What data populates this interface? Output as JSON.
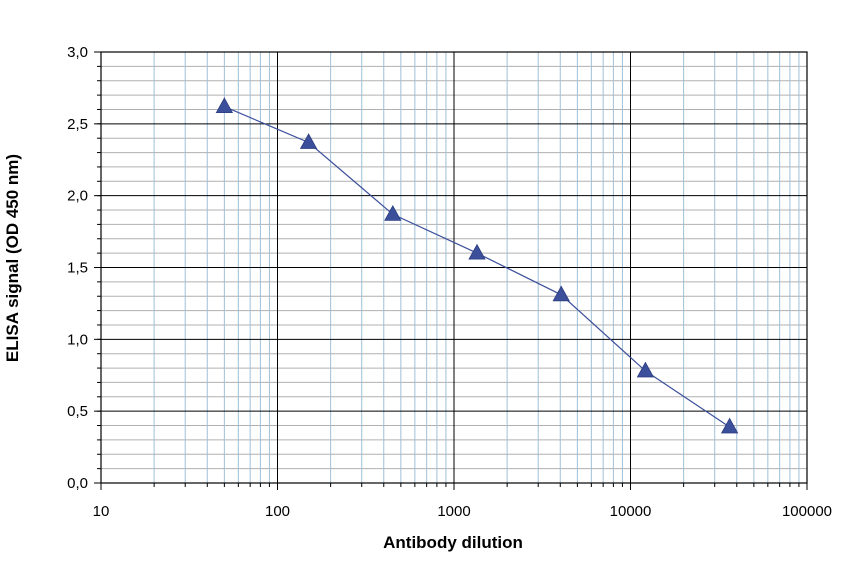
{
  "chart_data": {
    "type": "line",
    "title": "",
    "xlabel": "Antibody dilution",
    "ylabel": "ELISA signal (OD 450 nm)",
    "x_scale": "log",
    "xlim": [
      10,
      100000
    ],
    "ylim": [
      0,
      3.0
    ],
    "x_ticks": [
      10,
      100,
      1000,
      10000,
      100000
    ],
    "x_tick_labels": [
      "10",
      "100",
      "1000",
      "10000",
      "100000"
    ],
    "y_ticks": [
      0,
      0.5,
      1.0,
      1.5,
      2.0,
      2.5,
      3.0
    ],
    "y_tick_labels": [
      "0,0",
      "0,5",
      "1,0",
      "1,5",
      "2,0",
      "2,5",
      "3,0"
    ],
    "grid": true,
    "legend": "none",
    "series": [
      {
        "x": [
          50,
          150,
          450,
          1350,
          4050,
          12150,
          36450
        ],
        "values": [
          2.62,
          2.37,
          1.87,
          1.6,
          1.31,
          0.78,
          0.39
        ],
        "marker": "triangle",
        "color": "#3b4f9a"
      }
    ],
    "colors": {
      "major_grid": "#000000",
      "minor_grid": "#9fc0d8",
      "y_minor_grid": "#b0b0b0",
      "line": "#3b4f9a",
      "marker": "#3b4f9a"
    }
  }
}
